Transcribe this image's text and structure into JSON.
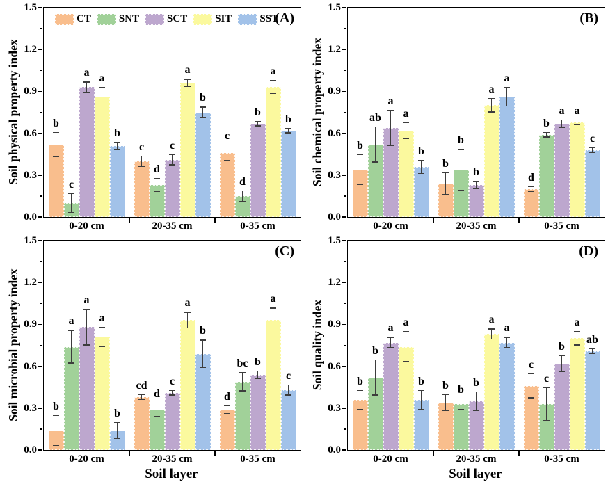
{
  "legend": {
    "entries": [
      {
        "label": "CT",
        "color": "#F9BE8D"
      },
      {
        "label": "SNT",
        "color": "#A1D199"
      },
      {
        "label": "SCT",
        "color": "#BDA7CE"
      },
      {
        "label": "SIT",
        "color": "#FBF99E"
      },
      {
        "label": "SST",
        "color": "#A2C2E9"
      }
    ]
  },
  "axis_style": {
    "error_bar_color": "#3d3d3d",
    "ylim": [
      0,
      1.5
    ],
    "yticks": [
      0,
      0.3,
      0.6,
      0.9,
      1.2,
      1.5
    ],
    "ytick_labels": [
      "0.0",
      "0.3",
      "0.6",
      "0.9",
      "1.2",
      "1.5"
    ],
    "yticks_minor": [
      0.15,
      0.45,
      0.75,
      1.05,
      1.35
    ]
  },
  "chart_data": [
    {
      "type": "bar",
      "panel_label": "(A)",
      "ylabel": "Soil physical property index",
      "xlabel": "",
      "categories": [
        "0-20 cm",
        "20-35 cm",
        "0-35 cm"
      ],
      "ylim": [
        0,
        1.5
      ],
      "legend_position": "top-left-inside",
      "series": [
        {
          "name": "CT",
          "values": [
            0.52,
            0.4,
            0.46
          ],
          "errors": [
            0.09,
            0.04,
            0.06
          ],
          "letters": [
            "b",
            "c",
            "c"
          ]
        },
        {
          "name": "SNT",
          "values": [
            0.1,
            0.23,
            0.15
          ],
          "errors": [
            0.07,
            0.05,
            0.04
          ],
          "letters": [
            "c",
            "d",
            "d"
          ]
        },
        {
          "name": "SCT",
          "values": [
            0.93,
            0.41,
            0.67
          ],
          "errors": [
            0.04,
            0.04,
            0.02
          ],
          "letters": [
            "a",
            "c",
            "b"
          ]
        },
        {
          "name": "SIT",
          "values": [
            0.86,
            0.96,
            0.93
          ],
          "errors": [
            0.07,
            0.03,
            0.05
          ],
          "letters": [
            "a",
            "a",
            "a"
          ]
        },
        {
          "name": "SST",
          "values": [
            0.51,
            0.75,
            0.62
          ],
          "errors": [
            0.03,
            0.04,
            0.02
          ],
          "letters": [
            "b",
            "b",
            "b"
          ]
        }
      ]
    },
    {
      "type": "bar",
      "panel_label": "(B)",
      "ylabel": "Soil chemical property index",
      "xlabel": "",
      "categories": [
        "0-20 cm",
        "20-35 cm",
        "0-35 cm"
      ],
      "ylim": [
        0,
        1.5
      ],
      "series": [
        {
          "name": "CT",
          "values": [
            0.34,
            0.24,
            0.2
          ],
          "errors": [
            0.11,
            0.08,
            0.02
          ],
          "letters": [
            "b",
            "b",
            "d"
          ]
        },
        {
          "name": "SNT",
          "values": [
            0.52,
            0.34,
            0.59
          ],
          "errors": [
            0.13,
            0.15,
            0.02
          ],
          "letters": [
            "ab",
            "b",
            "b"
          ]
        },
        {
          "name": "SCT",
          "values": [
            0.64,
            0.23,
            0.67
          ],
          "errors": [
            0.13,
            0.03,
            0.03
          ],
          "letters": [
            "a",
            "b",
            "a"
          ]
        },
        {
          "name": "SIT",
          "values": [
            0.62,
            0.8,
            0.68
          ],
          "errors": [
            0.06,
            0.05,
            0.02
          ],
          "letters": [
            "a",
            "a",
            "a"
          ]
        },
        {
          "name": "SST",
          "values": [
            0.36,
            0.86,
            0.48
          ],
          "errors": [
            0.05,
            0.07,
            0.02
          ],
          "letters": [
            "b",
            "a",
            "c"
          ]
        }
      ]
    },
    {
      "type": "bar",
      "panel_label": "(C)",
      "ylabel": "Soil microbial property index",
      "xlabel": "Soil layer",
      "categories": [
        "0-20 cm",
        "20-35 cm",
        "0-35 cm"
      ],
      "ylim": [
        0,
        1.5
      ],
      "series": [
        {
          "name": "CT",
          "values": [
            0.14,
            0.38,
            0.29
          ],
          "errors": [
            0.11,
            0.02,
            0.03
          ],
          "letters": [
            "b",
            "cd",
            "d"
          ]
        },
        {
          "name": "SNT",
          "values": [
            0.74,
            0.29,
            0.49
          ],
          "errors": [
            0.12,
            0.05,
            0.07
          ],
          "letters": [
            "a",
            "d",
            "bc"
          ]
        },
        {
          "name": "SCT",
          "values": [
            0.88,
            0.41,
            0.54
          ],
          "errors": [
            0.13,
            0.02,
            0.03
          ],
          "letters": [
            "a",
            "c",
            "b"
          ]
        },
        {
          "name": "SIT",
          "values": [
            0.81,
            0.93,
            0.93
          ],
          "errors": [
            0.07,
            0.06,
            0.09
          ],
          "letters": [
            "a",
            "a",
            "a"
          ]
        },
        {
          "name": "SST",
          "values": [
            0.14,
            0.69,
            0.43
          ],
          "errors": [
            0.06,
            0.1,
            0.04
          ],
          "letters": [
            "b",
            "b",
            "c"
          ]
        }
      ]
    },
    {
      "type": "bar",
      "panel_label": "(D)",
      "ylabel": "Soil quality index",
      "xlabel": "Soil layer",
      "categories": [
        "0-20 cm",
        "20-35 cm",
        "0-35 cm"
      ],
      "ylim": [
        0,
        1.5
      ],
      "series": [
        {
          "name": "CT",
          "values": [
            0.36,
            0.34,
            0.46
          ],
          "errors": [
            0.07,
            0.06,
            0.09
          ],
          "letters": [
            "b",
            "b",
            "c"
          ]
        },
        {
          "name": "SNT",
          "values": [
            0.52,
            0.33,
            0.33
          ],
          "errors": [
            0.13,
            0.04,
            0.12
          ],
          "letters": [
            "b",
            "b",
            "c"
          ]
        },
        {
          "name": "SCT",
          "values": [
            0.77,
            0.35,
            0.62
          ],
          "errors": [
            0.04,
            0.07,
            0.06
          ],
          "letters": [
            "a",
            "b",
            "b"
          ]
        },
        {
          "name": "SIT",
          "values": [
            0.74,
            0.83,
            0.8
          ],
          "errors": [
            0.11,
            0.04,
            0.05
          ],
          "letters": [
            "a",
            "a",
            "a"
          ]
        },
        {
          "name": "SST",
          "values": [
            0.36,
            0.77,
            0.71
          ],
          "errors": [
            0.07,
            0.04,
            0.02
          ],
          "letters": [
            "b",
            "a",
            "ab"
          ]
        }
      ]
    }
  ]
}
